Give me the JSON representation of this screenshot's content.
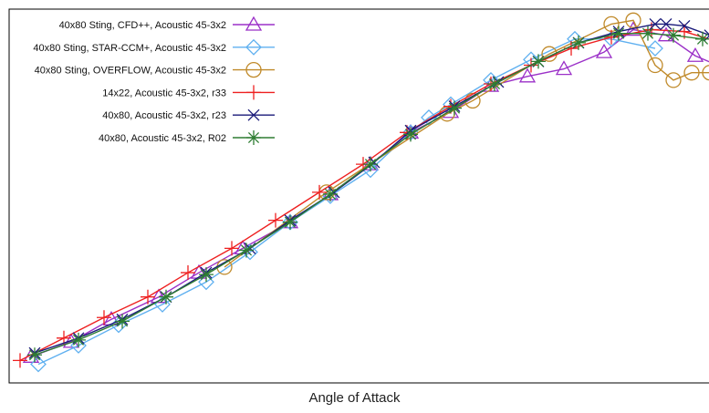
{
  "chart_data": {
    "type": "line",
    "title": "",
    "xlabel": "Angle of Attack",
    "ylabel": "",
    "grid": false,
    "legend_position": "top-left",
    "xlim": [
      0,
      100
    ],
    "ylim": [
      0,
      100
    ],
    "series": [
      {
        "name": "40x80 Sting, CFD++, Acoustic 45-3x2",
        "color": "#9b30c8",
        "marker": "triangle",
        "x": [
          3,
          8.5,
          14,
          20.5,
          26,
          32,
          38.5,
          44,
          49.5,
          55,
          60.5,
          66,
          71,
          76,
          81.5,
          85.5,
          90,
          94,
          97
        ],
        "y": [
          7,
          11,
          17,
          23,
          29.5,
          36,
          43,
          50.5,
          58.5,
          67,
          72.5,
          79.5,
          82,
          84,
          88.5,
          94.5,
          93,
          87.5,
          85
        ]
      },
      {
        "name": "40x80 Sting, STAR-CCM+, Acoustic 45-3x2",
        "color": "#5fb0f0",
        "marker": "diamond",
        "x": [
          4,
          9.5,
          15,
          21,
          27,
          33,
          38.5,
          44,
          49.5,
          55,
          57.5,
          60.5,
          66,
          71.5,
          77.5,
          82.5,
          88.5
        ],
        "y": [
          5,
          10,
          15.5,
          21,
          27,
          35,
          43,
          50,
          57,
          67,
          71,
          74.5,
          81,
          86.5,
          92,
          92,
          89.5
        ]
      },
      {
        "name": "40x80 Sting, OVERFLOW, Acoustic 45-3x2",
        "color": "#c08a2a",
        "marker": "circle",
        "x": [
          29.5,
          43.5,
          60,
          63.5,
          74,
          82.5,
          85.5,
          88.5,
          91,
          93.5,
          96,
          98.5
        ],
        "y": [
          31,
          51,
          72,
          75.5,
          88,
          96,
          97,
          85,
          81,
          83,
          83,
          83
        ]
      },
      {
        "name": "14x22, Acoustic 45-3x2, r33",
        "color": "#ee2020",
        "marker": "plus",
        "x": [
          1.5,
          7.5,
          13,
          19,
          24.5,
          30.5,
          36.5,
          42.5,
          48.5,
          54.5,
          60.5,
          66,
          71.5,
          77,
          82.5,
          88,
          92.5,
          97.5
        ],
        "y": [
          6,
          12,
          17.5,
          23,
          29.5,
          36,
          43.5,
          51,
          58.5,
          67,
          74,
          80,
          85,
          89.5,
          92.5,
          94.5,
          94,
          91
        ]
      },
      {
        "name": "40x80, Acoustic 45-3x2, r23",
        "color": "#1a1a7a",
        "marker": "x",
        "x": [
          3.5,
          9.5,
          15.5,
          21.5,
          27,
          33,
          38.5,
          44.5,
          50,
          55,
          61,
          67,
          72.5,
          78,
          83.5,
          88.5,
          90,
          92.5,
          96
        ],
        "y": [
          8,
          12,
          17,
          23,
          29.5,
          36,
          43.5,
          51,
          59,
          67.5,
          74,
          80.5,
          86,
          91,
          94,
          96,
          96,
          95.5,
          93
        ]
      },
      {
        "name": "40x80, Acoustic 45-3x2, R02",
        "color": "#2e7d32",
        "marker": "star",
        "x": [
          3.5,
          9.5,
          15.5,
          21.5,
          27,
          32.5,
          38.5,
          44,
          49.5,
          55,
          61,
          66.5,
          72.5,
          78,
          83.5,
          87.5,
          91,
          95
        ],
        "y": [
          7.5,
          11.5,
          16.5,
          23,
          29,
          35.5,
          43,
          50.5,
          58.5,
          66.5,
          73.5,
          80,
          86,
          91,
          93.5,
          93.5,
          93,
          92
        ]
      }
    ]
  }
}
